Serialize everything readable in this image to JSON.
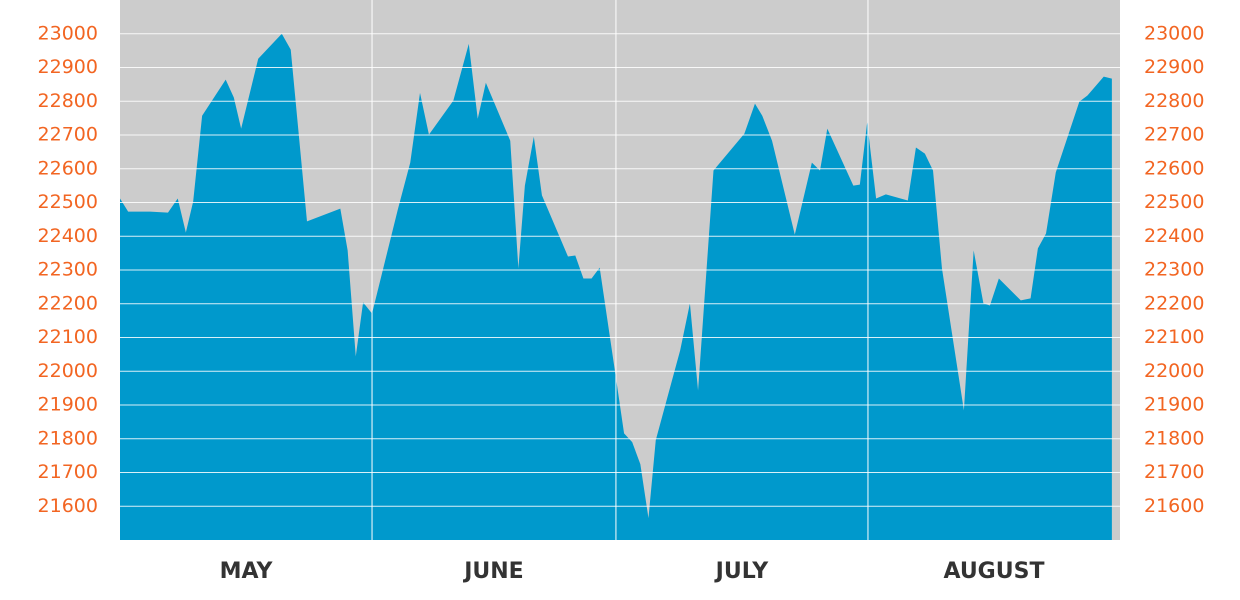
{
  "chart_data": {
    "type": "area",
    "categories": [
      "MAY",
      "JUNE",
      "JULY",
      "AUGUST"
    ],
    "x": [
      0,
      1,
      3.7,
      5.9,
      7.1,
      8.1,
      9,
      10.1,
      13,
      14,
      14.9,
      17,
      19.9,
      21,
      23,
      27.1,
      28,
      29,
      29.9,
      31,
      34.2,
      35.7,
      36.9,
      38,
      41,
      42.9,
      44,
      45,
      48,
      49,
      49.8,
      50.9,
      51.9,
      55.1,
      56,
      57,
      58,
      59,
      60.9,
      62,
      63,
      64,
      65,
      65.9,
      68.9,
      70.1,
      71.1,
      73,
      76.8,
      78.1,
      79,
      80.2,
      83,
      85.1,
      86.1,
      87,
      90.2,
      91,
      91.9,
      93,
      94.2,
      96.9,
      97.9,
      99,
      100,
      101.1,
      103.8,
      105,
      106.2,
      107,
      108.1,
      110.8,
      112,
      112.9,
      113.9,
      115.1,
      118,
      119,
      121,
      122
    ],
    "series": [
      {
        "color": "#0099cc",
        "values": [
          22512,
          22473,
          22473,
          22470,
          22512,
          22411,
          22503,
          22757,
          22864,
          22811,
          22719,
          22926,
          23000,
          22953,
          22444,
          22482,
          22358,
          22044,
          22204,
          22171,
          22482,
          22618,
          22825,
          22701,
          22802,
          22970,
          22748,
          22855,
          22683,
          22305,
          22550,
          22695,
          22521,
          22340,
          22343,
          22275,
          22275,
          22307,
          21997,
          21816,
          21790,
          21725,
          21565,
          21796,
          22062,
          22201,
          21943,
          22595,
          22704,
          22793,
          22757,
          22683,
          22405,
          22618,
          22595,
          22719,
          22550,
          22553,
          22737,
          22512,
          22524,
          22506,
          22663,
          22645,
          22595,
          22305,
          21884,
          22358,
          22201,
          22195,
          22275,
          22210,
          22216,
          22364,
          22408,
          22589,
          22799,
          22817,
          22873,
          22867
        ]
      }
    ],
    "xlim": [
      0,
      123
    ],
    "xticks": [
      31,
      61,
      92
    ],
    "ylim": [
      21500,
      23100
    ],
    "yticks": [
      21600,
      21700,
      21800,
      21900,
      22000,
      22100,
      22200,
      22300,
      22400,
      22500,
      22600,
      22700,
      22800,
      22900,
      23000
    ],
    "y2lim": [
      21500,
      23100
    ],
    "y2ticks": [
      21600,
      21700,
      21800,
      21900,
      22000,
      22100,
      22200,
      22300,
      22400,
      22500,
      22600,
      22700,
      22800,
      22900,
      23000
    ],
    "grid": true,
    "background": "#cccccc"
  }
}
